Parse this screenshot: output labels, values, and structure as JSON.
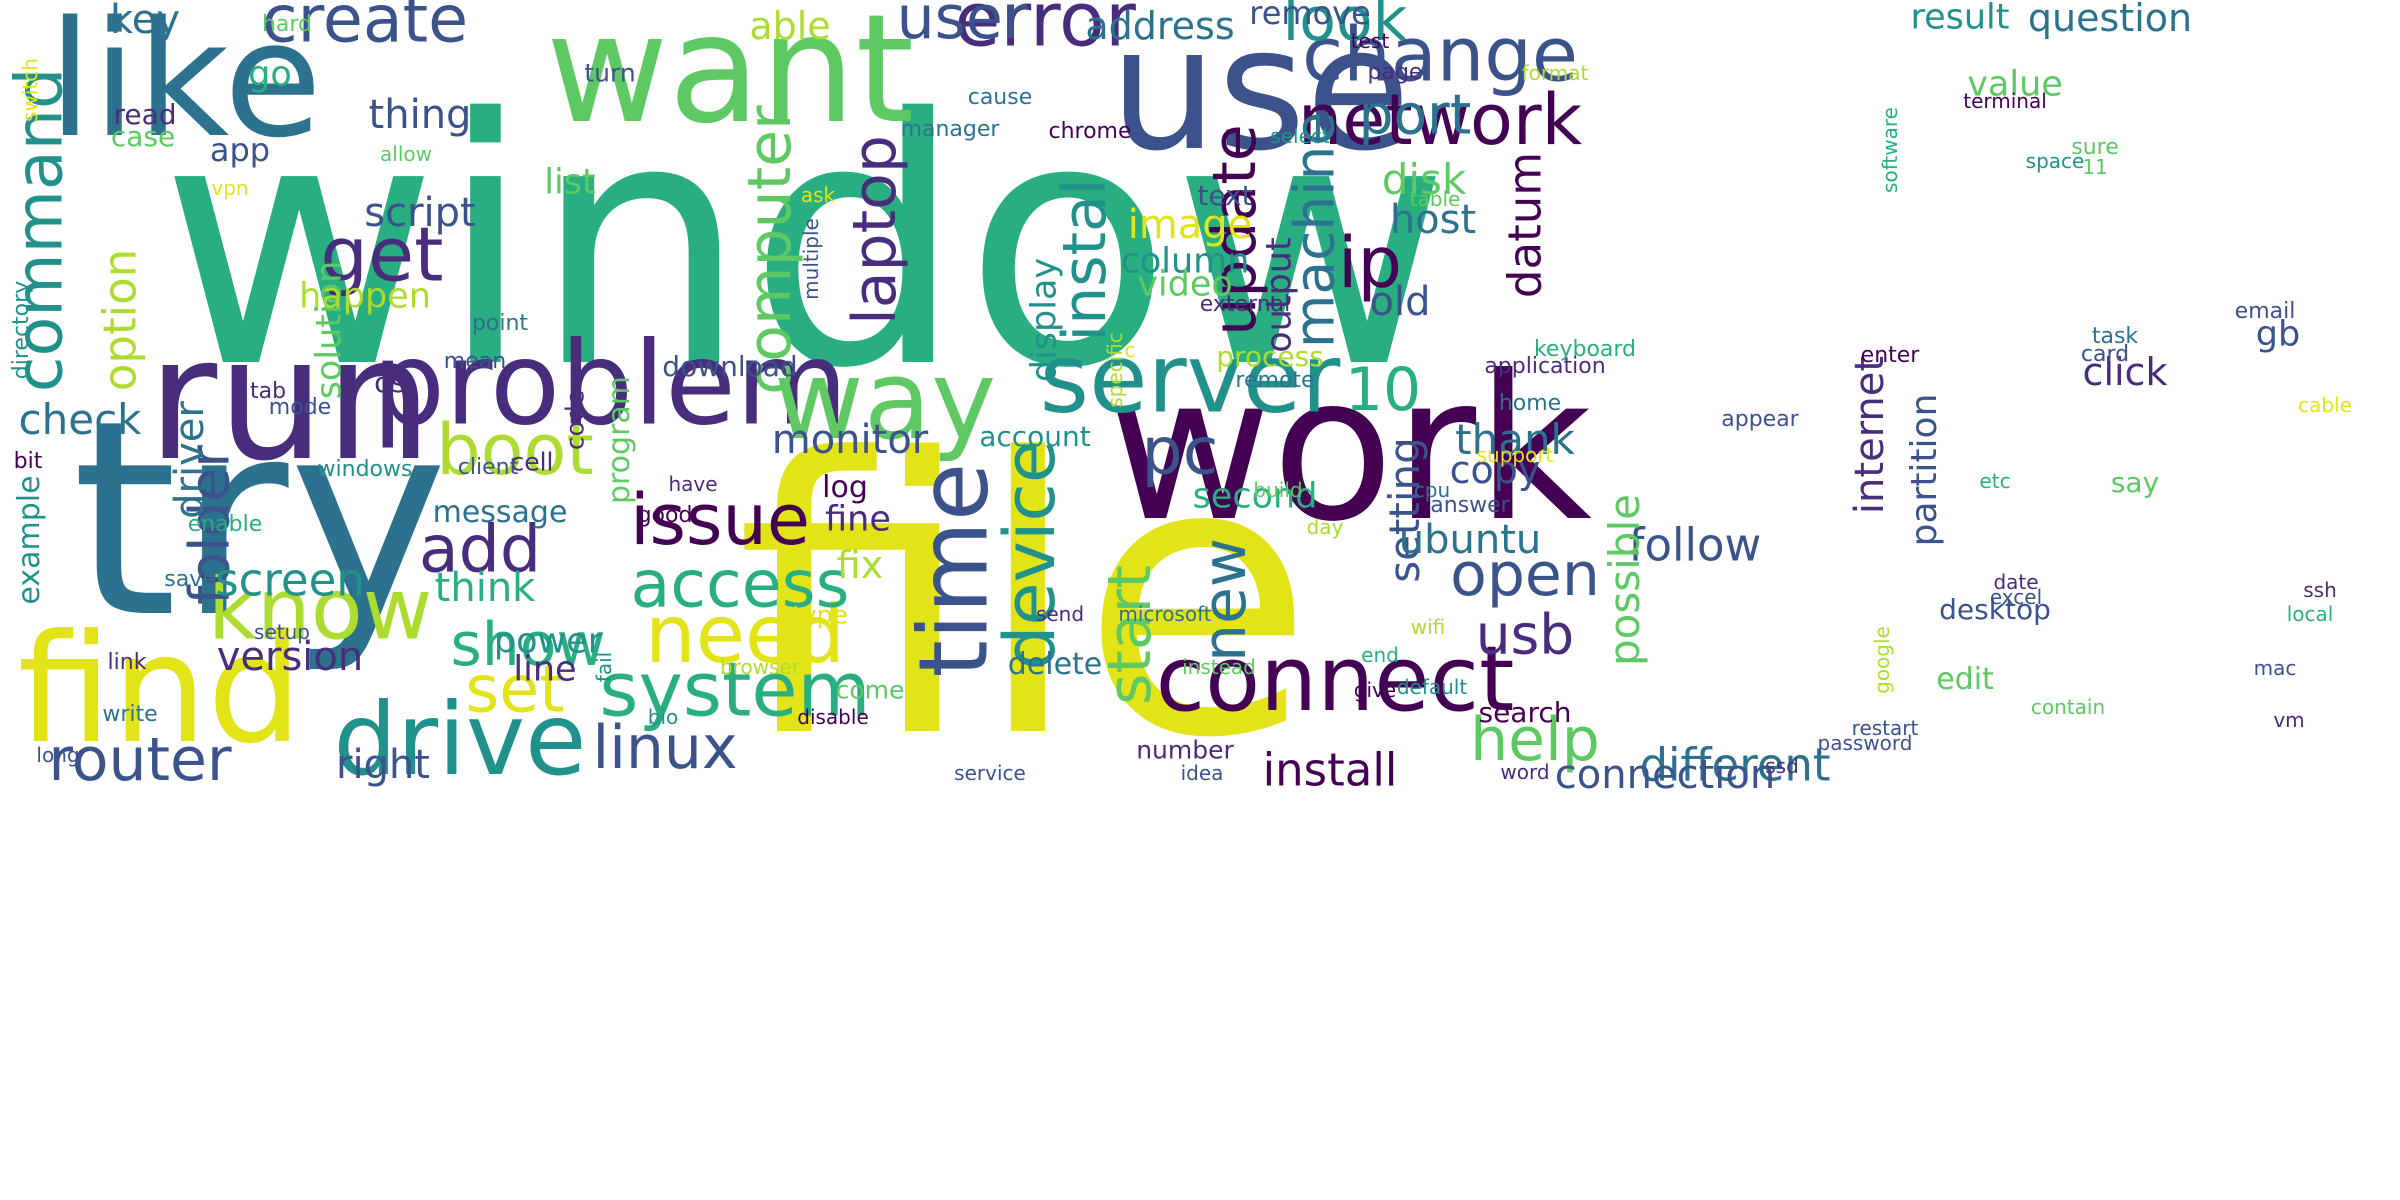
{
  "title": "Word cloud",
  "palette": {
    "c1": "#440154",
    "c2": "#472d7b",
    "c3": "#3b528b",
    "c4": "#2c728e",
    "c5": "#21918c",
    "c6": "#28ae80",
    "c7": "#5ec962",
    "c8": "#addc30",
    "c9": "#e2e418"
  },
  "words": [
    {
      "key": "window",
      "text": "window",
      "color": "c6",
      "weight": 100
    },
    {
      "key": "file",
      "text": "file",
      "color": "c9",
      "weight": 95
    },
    {
      "key": "try",
      "text": "try",
      "color": "c4",
      "weight": 85
    },
    {
      "key": "work",
      "text": "work",
      "color": "c1",
      "weight": 75
    },
    {
      "key": "use",
      "text": "use",
      "color": "c3",
      "weight": 65
    },
    {
      "key": "like",
      "text": "like",
      "color": "c4",
      "weight": 60
    },
    {
      "key": "run",
      "text": "run",
      "color": "c2",
      "weight": 58
    },
    {
      "key": "want",
      "text": "want",
      "color": "c7",
      "weight": 55
    },
    {
      "key": "find",
      "text": "find",
      "color": "c9",
      "weight": 52
    },
    {
      "key": "problem",
      "text": "problem",
      "color": "c2",
      "weight": 50
    },
    {
      "key": "drive",
      "text": "drive",
      "color": "c5",
      "weight": 46
    },
    {
      "key": "server",
      "text": "server",
      "color": "c5",
      "weight": 44
    },
    {
      "key": "time",
      "text": "time",
      "color": "c3",
      "weight": 42
    },
    {
      "key": "way",
      "text": "way",
      "color": "c7",
      "weight": 42
    },
    {
      "key": "connect",
      "text": "connect",
      "color": "c1",
      "weight": 40
    },
    {
      "key": "error",
      "text": "error",
      "color": "c2",
      "weight": 36
    },
    {
      "key": "change",
      "text": "change",
      "color": "c3",
      "weight": 35
    },
    {
      "key": "need",
      "text": "need",
      "color": "c9",
      "weight": 35
    },
    {
      "key": "system",
      "text": "system",
      "color": "c6",
      "weight": 34
    },
    {
      "key": "know",
      "text": "know",
      "color": "c8",
      "weight": 33
    },
    {
      "key": "device",
      "text": "device",
      "color": "c5",
      "weight": 33
    },
    {
      "key": "issue",
      "text": "issue",
      "color": "c1",
      "weight": 32
    },
    {
      "key": "access",
      "text": "access",
      "color": "c6",
      "weight": 31
    },
    {
      "key": "create",
      "text": "create",
      "color": "c3",
      "weight": 30
    },
    {
      "key": "network",
      "text": "network",
      "color": "c1",
      "weight": 30
    },
    {
      "key": "boot",
      "text": "boot",
      "color": "c8",
      "weight": 30
    },
    {
      "key": "router",
      "text": "router",
      "color": "c3",
      "weight": 29
    },
    {
      "key": "command",
      "text": "command",
      "color": "c5",
      "weight": 28
    },
    {
      "key": "computer",
      "text": "computer",
      "color": "c7",
      "weight": 28
    },
    {
      "key": "laptop",
      "text": "laptop",
      "color": "c2",
      "weight": 28
    },
    {
      "key": "update",
      "text": "update",
      "color": "c1",
      "weight": 28
    },
    {
      "key": "instal",
      "text": "instal",
      "color": "c5",
      "weight": 27
    },
    {
      "key": "machine",
      "text": "machine",
      "color": "c4",
      "weight": 27
    },
    {
      "key": "get",
      "text": "get",
      "color": "c2",
      "weight": 27
    },
    {
      "key": "folder",
      "text": "folder",
      "color": "c3",
      "weight": 26
    },
    {
      "key": "show",
      "text": "show",
      "color": "c6",
      "weight": 26
    },
    {
      "key": "linux",
      "text": "linux",
      "color": "c3",
      "weight": 25
    },
    {
      "key": "help",
      "text": "help",
      "color": "c7",
      "weight": 25
    },
    {
      "key": "open",
      "text": "open",
      "color": "c3",
      "weight": 25
    },
    {
      "key": "start",
      "text": "start",
      "color": "c7",
      "weight": 25
    },
    {
      "key": "new",
      "text": "new",
      "color": "c4",
      "weight": 25
    },
    {
      "key": "look",
      "text": "look",
      "color": "c5",
      "weight": 24
    },
    {
      "key": "user",
      "text": "user",
      "color": "c3",
      "weight": 24
    },
    {
      "key": "add",
      "text": "add",
      "color": "c2",
      "weight": 24
    },
    {
      "key": "set",
      "text": "set",
      "color": "c9",
      "weight": 24
    },
    {
      "key": "pc",
      "text": "pc",
      "color": "c3",
      "weight": 24
    },
    {
      "key": "ip",
      "text": "ip",
      "color": "c1",
      "weight": 23
    },
    {
      "key": "port",
      "text": "port",
      "color": "c4",
      "weight": 23
    },
    {
      "key": "10",
      "text": "10",
      "color": "c6",
      "weight": 23
    },
    {
      "key": "usb",
      "text": "usb",
      "color": "c2",
      "weight": 22
    },
    {
      "key": "install",
      "text": "install",
      "color": "c1",
      "weight": 21
    },
    {
      "key": "different",
      "text": "different",
      "color": "c4",
      "weight": 21
    },
    {
      "key": "option",
      "text": "option",
      "color": "c8",
      "weight": 21
    },
    {
      "key": "datum",
      "text": "datum",
      "color": "c1",
      "weight": 21
    },
    {
      "key": "connection",
      "text": "connection",
      "color": "c3",
      "weight": 20
    },
    {
      "key": "screen",
      "text": "screen",
      "color": "c5",
      "weight": 20
    },
    {
      "key": "follow",
      "text": "follow",
      "color": "c3",
      "weight": 20
    },
    {
      "key": "setting",
      "text": "setting",
      "color": "c3",
      "weight": 20
    },
    {
      "key": "possible",
      "text": "possible",
      "color": "c7",
      "weight": 20
    },
    {
      "key": "ubuntu",
      "text": "ubuntu",
      "color": "c4",
      "weight": 19
    },
    {
      "key": "thank",
      "text": "thank",
      "color": "c4",
      "weight": 19
    },
    {
      "key": "version",
      "text": "version",
      "color": "c2",
      "weight": 19
    },
    {
      "key": "internet",
      "text": "internet",
      "color": "c2",
      "weight": 19
    },
    {
      "key": "right",
      "text": "right",
      "color": "c3",
      "weight": 19
    },
    {
      "key": "disk",
      "text": "disk",
      "color": "c7",
      "weight": 19
    },
    {
      "key": "check",
      "text": "check",
      "color": "c4",
      "weight": 19
    },
    {
      "key": "thing",
      "text": "thing",
      "color": "c3",
      "weight": 18
    },
    {
      "key": "monitor",
      "text": "monitor",
      "color": "c3",
      "weight": 18
    },
    {
      "key": "driver",
      "text": "driver",
      "color": "c4",
      "weight": 18
    },
    {
      "key": "think",
      "text": "think",
      "color": "c6",
      "weight": 18
    },
    {
      "key": "partition",
      "text": "partition",
      "color": "c3",
      "weight": 18
    },
    {
      "key": "solution",
      "text": "solution",
      "color": "c7",
      "weight": 18
    },
    {
      "key": "image",
      "text": "image",
      "color": "c9",
      "weight": 18
    },
    {
      "key": "column",
      "text": "column",
      "color": "c5",
      "weight": 17
    },
    {
      "key": "output",
      "text": "output",
      "color": "c2",
      "weight": 17
    },
    {
      "key": "host",
      "text": "host",
      "color": "c4",
      "weight": 17
    },
    {
      "key": "script",
      "text": "script",
      "color": "c3",
      "weight": 17
    },
    {
      "key": "copy",
      "text": "copy",
      "color": "c3",
      "weight": 17
    },
    {
      "key": "display",
      "text": "display",
      "color": "c5",
      "weight": 17
    },
    {
      "key": "result",
      "text": "result",
      "color": "c5",
      "weight": 16
    },
    {
      "key": "question",
      "text": "question",
      "color": "c4",
      "weight": 16
    },
    {
      "key": "happen",
      "text": "happen",
      "color": "c8",
      "weight": 16
    },
    {
      "key": "fix",
      "text": "fix",
      "color": "c8",
      "weight": 16
    },
    {
      "key": "key",
      "text": "key",
      "color": "c4",
      "weight": 16
    },
    {
      "key": "address",
      "text": "address",
      "color": "c4",
      "weight": 16
    },
    {
      "key": "value",
      "text": "value",
      "color": "c7",
      "weight": 16
    },
    {
      "key": "click",
      "text": "click",
      "color": "c2",
      "weight": 16
    },
    {
      "key": "video",
      "text": "video",
      "color": "c7",
      "weight": 16
    },
    {
      "key": "gb",
      "text": "gb",
      "color": "c3",
      "weight": 15
    },
    {
      "key": "line",
      "text": "line",
      "color": "c2",
      "weight": 15
    },
    {
      "key": "power",
      "text": "power",
      "color": "c5",
      "weight": 15
    },
    {
      "key": "program",
      "text": "program",
      "color": "c7",
      "weight": 15
    },
    {
      "key": "second",
      "text": "second",
      "color": "c6",
      "weight": 15
    },
    {
      "key": "old",
      "text": "old",
      "color": "c3",
      "weight": 15
    },
    {
      "key": "fine",
      "text": "fine",
      "color": "c2",
      "weight": 15
    },
    {
      "key": "able",
      "text": "able",
      "color": "c8",
      "weight": 15
    },
    {
      "key": "text",
      "text": "text",
      "color": "c3",
      "weight": 14
    },
    {
      "key": "list",
      "text": "list",
      "color": "c7",
      "weight": 14
    },
    {
      "key": "remove",
      "text": "remove",
      "color": "c3",
      "weight": 14
    },
    {
      "key": "app",
      "text": "app",
      "color": "c3",
      "weight": 14
    },
    {
      "key": "log",
      "text": "log",
      "color": "c1",
      "weight": 14
    },
    {
      "key": "example",
      "text": "example",
      "color": "c5",
      "weight": 14
    },
    {
      "key": "delete",
      "text": "delete",
      "color": "c4",
      "weight": 14
    },
    {
      "key": "go",
      "text": "go",
      "color": "c6",
      "weight": 14
    },
    {
      "key": "edit",
      "text": "edit",
      "color": "c7",
      "weight": 13
    },
    {
      "key": "message",
      "text": "message",
      "color": "c4",
      "weight": 13
    },
    {
      "key": "desktop",
      "text": "desktop",
      "color": "c3",
      "weight": 13
    },
    {
      "key": "search",
      "text": "search",
      "color": "c1",
      "weight": 13
    },
    {
      "key": "account",
      "text": "account",
      "color": "c5",
      "weight": 13
    },
    {
      "key": "process",
      "text": "process",
      "color": "c8",
      "weight": 13
    },
    {
      "key": "say",
      "text": "say",
      "color": "c7",
      "weight": 13
    },
    {
      "key": "download",
      "text": "download",
      "color": "c3",
      "weight": 13
    },
    {
      "key": "os",
      "text": "os",
      "color": "c2",
      "weight": 12
    },
    {
      "key": "cell",
      "text": "cell",
      "color": "c2",
      "weight": 12
    },
    {
      "key": "number",
      "text": "number",
      "color": "c2",
      "weight": 12
    },
    {
      "key": "type",
      "text": "type",
      "color": "c9",
      "weight": 12
    },
    {
      "key": "read",
      "text": "read",
      "color": "c2",
      "weight": 12
    },
    {
      "key": "code",
      "text": "code",
      "color": "c2",
      "weight": 12
    },
    {
      "key": "case",
      "text": "case",
      "color": "c7",
      "weight": 12
    },
    {
      "key": "directory",
      "text": "directory",
      "color": "c5",
      "weight": 11
    },
    {
      "key": "page",
      "text": "page",
      "color": "c2",
      "weight": 11
    },
    {
      "key": "come",
      "text": "come",
      "color": "c7",
      "weight": 11
    },
    {
      "key": "turn",
      "text": "turn",
      "color": "c3",
      "weight": 11
    },
    {
      "key": "save",
      "text": "save",
      "color": "c4",
      "weight": 11
    },
    {
      "key": "enable",
      "text": "enable",
      "color": "c6",
      "weight": 11
    },
    {
      "key": "write",
      "text": "write",
      "color": "c4",
      "weight": 11
    },
    {
      "key": "restart",
      "text": "restart",
      "color": "c3",
      "weight": 11
    },
    {
      "key": "mode",
      "text": "mode",
      "color": "c3",
      "weight": 11
    },
    {
      "key": "tab",
      "text": "tab",
      "color": "c2",
      "weight": 11
    },
    {
      "key": "hard",
      "text": "hard",
      "color": "c7",
      "weight": 11
    },
    {
      "key": "task",
      "text": "task",
      "color": "c4",
      "weight": 11
    },
    {
      "key": "card",
      "text": "card",
      "color": "c3",
      "weight": 11
    },
    {
      "key": "home",
      "text": "home",
      "color": "c4",
      "weight": 11
    },
    {
      "key": "application",
      "text": "application",
      "color": "c2",
      "weight": 11
    },
    {
      "key": "sure",
      "text": "sure",
      "color": "c7",
      "weight": 11
    },
    {
      "key": "external",
      "text": "external",
      "color": "c2",
      "weight": 11
    },
    {
      "key": "email",
      "text": "email",
      "color": "c3",
      "weight": 10
    },
    {
      "key": "bit",
      "text": "bit",
      "color": "c1",
      "weight": 10
    },
    {
      "key": "link",
      "text": "link",
      "color": "c2",
      "weight": 10
    },
    {
      "key": "keyboard",
      "text": "keyboard",
      "color": "c6",
      "weight": 10
    },
    {
      "key": "point",
      "text": "point",
      "color": "c4",
      "weight": 10
    },
    {
      "key": "mean",
      "text": "mean",
      "color": "c3",
      "weight": 10
    },
    {
      "key": "client",
      "text": "client",
      "color": "c3",
      "weight": 10
    },
    {
      "key": "windows",
      "text": "windows",
      "color": "c5",
      "weight": 10
    },
    {
      "key": "remote",
      "text": "remote",
      "color": "c4",
      "weight": 10
    },
    {
      "key": "good",
      "text": "good",
      "color": "c1",
      "weight": 10
    },
    {
      "key": "answer",
      "text": "answer",
      "color": "c3",
      "weight": 10
    },
    {
      "key": "cause",
      "text": "cause",
      "color": "c4",
      "weight": 10
    },
    {
      "key": "manager",
      "text": "manager",
      "color": "c4",
      "weight": 10
    },
    {
      "key": "chrome",
      "text": "chrome",
      "color": "c1",
      "weight": 10
    },
    {
      "key": "select",
      "text": "select",
      "color": "c5",
      "weight": 10
    },
    {
      "key": "test",
      "text": "test",
      "color": "c1",
      "weight": 10
    },
    {
      "key": "terminal",
      "text": "terminal",
      "color": "c1",
      "weight": 10
    },
    {
      "key": "space",
      "text": "space",
      "color": "c5",
      "weight": 10
    },
    {
      "key": "11",
      "text": "11",
      "color": "c7",
      "weight": 10
    },
    {
      "key": "table",
      "text": "table",
      "color": "c7",
      "weight": 10
    },
    {
      "key": "appear",
      "text": "appear",
      "color": "c3",
      "weight": 10
    },
    {
      "key": "enter",
      "text": "enter",
      "color": "c1",
      "weight": 10
    },
    {
      "key": "cable",
      "text": "cable",
      "color": "c9",
      "weight": 10
    },
    {
      "key": "support",
      "text": "support",
      "color": "c9",
      "weight": 10
    },
    {
      "key": "build",
      "text": "build",
      "color": "c7",
      "weight": 10
    },
    {
      "key": "cpu",
      "text": "cpu",
      "color": "c4",
      "weight": 10
    },
    {
      "key": "etc",
      "text": "etc",
      "color": "c6",
      "weight": 10
    },
    {
      "key": "date",
      "text": "date",
      "color": "c2",
      "weight": 10
    },
    {
      "key": "excel",
      "text": "excel",
      "color": "c3",
      "weight": 10
    },
    {
      "key": "ssh",
      "text": "ssh",
      "color": "c2",
      "weight": 10
    },
    {
      "key": "local",
      "text": "local",
      "color": "c6",
      "weight": 10
    },
    {
      "key": "setup",
      "text": "setup",
      "color": "c3",
      "weight": 10
    },
    {
      "key": "day",
      "text": "day",
      "color": "c8",
      "weight": 10
    },
    {
      "key": "send",
      "text": "send",
      "color": "c2",
      "weight": 10
    },
    {
      "key": "microsoft",
      "text": "microsoft",
      "color": "c4",
      "weight": 10
    },
    {
      "key": "wifi",
      "text": "wifi",
      "color": "c8",
      "weight": 10
    },
    {
      "key": "end",
      "text": "end",
      "color": "c6",
      "weight": 10
    },
    {
      "key": "mac",
      "text": "mac",
      "color": "c3",
      "weight": 10
    },
    {
      "key": "browser",
      "text": "browser",
      "color": "c8",
      "weight": 10
    },
    {
      "key": "instead",
      "text": "instead",
      "color": "c7",
      "weight": 10
    },
    {
      "key": "give",
      "text": "give",
      "color": "c1",
      "weight": 10
    },
    {
      "key": "default",
      "text": "default",
      "color": "c5",
      "weight": 10
    },
    {
      "key": "contain",
      "text": "contain",
      "color": "c7",
      "weight": 10
    },
    {
      "key": "vm",
      "text": "vm",
      "color": "c2",
      "weight": 10
    },
    {
      "key": "bio",
      "text": "bio",
      "color": "c5",
      "weight": 10
    },
    {
      "key": "disable",
      "text": "disable",
      "color": "c1",
      "weight": 10
    },
    {
      "key": "password",
      "text": "password",
      "color": "c3",
      "weight": 10
    },
    {
      "key": "long",
      "text": "long",
      "color": "c3",
      "weight": 10
    },
    {
      "key": "service",
      "text": "service",
      "color": "c3",
      "weight": 10
    },
    {
      "key": "idea",
      "text": "idea",
      "color": "c3",
      "weight": 10
    },
    {
      "key": "word",
      "text": "word",
      "color": "c2",
      "weight": 10
    },
    {
      "key": "ssd",
      "text": "ssd",
      "color": "c2",
      "weight": 10
    },
    {
      "key": "allow",
      "text": "allow",
      "color": "c7",
      "weight": 10
    },
    {
      "key": "vpn",
      "text": "vpn",
      "color": "c9",
      "weight": 10
    },
    {
      "key": "ask",
      "text": "ask",
      "color": "c9",
      "weight": 10
    },
    {
      "key": "format",
      "text": "format",
      "color": "c8",
      "weight": 10
    },
    {
      "key": "switch",
      "text": "switch",
      "color": "c9",
      "weight": 10
    },
    {
      "key": "software",
      "text": "software",
      "color": "c6",
      "weight": 10
    },
    {
      "key": "multiple",
      "text": "multiple",
      "color": "c3",
      "weight": 10
    },
    {
      "key": "specific",
      "text": "specific",
      "color": "c8",
      "weight": 10
    },
    {
      "key": "fail",
      "text": "fail",
      "color": "c5",
      "weight": 10
    },
    {
      "key": "google",
      "text": "google",
      "color": "c8",
      "weight": 10
    },
    {
      "key": "have",
      "text": "have",
      "color": "c2",
      "weight": 10
    },
    {
      "key": "c",
      "text": "c",
      "color": "c9",
      "weight": 10
    }
  ]
}
